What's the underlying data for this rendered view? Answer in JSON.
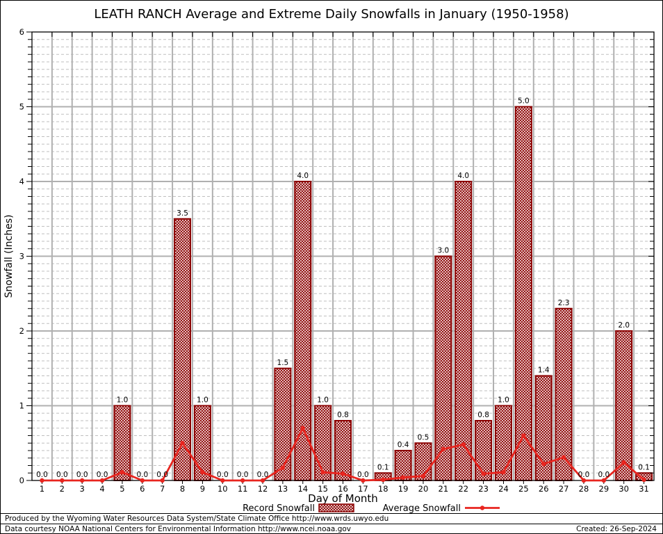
{
  "title": "LEATH RANCH Average and Extreme Daily Snowfalls in January (1950-1958)",
  "footer": {
    "line1": "Produced by the Wyoming Water Resources Data System/State Climate Office http://www.wrds.uwyo.edu",
    "line2": "Data courtesy NOAA National Centers for Environmental Information http://www.ncei.noaa.gov",
    "created": "Created: 26-Sep-2024"
  },
  "chart_data": {
    "type": "bar",
    "title": "LEATH RANCH Average and Extreme Daily Snowfalls in January (1950-1958)",
    "xlabel": "Day of Month",
    "ylabel": "Snowfall (Inches)",
    "ylim": [
      0,
      6
    ],
    "yticks": [
      0,
      1,
      2,
      3,
      4,
      5,
      6
    ],
    "ytick_minor_interval": 0.1,
    "grid": "major-solid-gray, minor-dashed, vertical-day-boundaries",
    "legend_position": "bottom",
    "frame_color": "#000000",
    "major_grid_color": "#b0b0b0",
    "minor_grid_color": "#bfbfbf",
    "categories": [
      1,
      2,
      3,
      4,
      5,
      6,
      7,
      8,
      9,
      10,
      11,
      12,
      13,
      14,
      15,
      16,
      17,
      18,
      19,
      20,
      21,
      22,
      23,
      24,
      25,
      26,
      27,
      28,
      29,
      30,
      31
    ],
    "series": [
      {
        "name": "Record Snowfall",
        "type": "bar",
        "color": "#8b0000",
        "fill_style": "crosshatch",
        "value_labels_shown": true,
        "values": [
          0.0,
          0.0,
          0.0,
          0.0,
          1.0,
          0.0,
          0.0,
          3.5,
          1.0,
          0.0,
          0.0,
          0.0,
          1.5,
          4.0,
          1.0,
          0.8,
          0.0,
          0.1,
          0.4,
          0.5,
          3.0,
          4.0,
          0.8,
          1.0,
          5.0,
          1.4,
          2.3,
          0.0,
          0.0,
          2.0,
          0.1
        ]
      },
      {
        "name": "Average Snowfall",
        "type": "line",
        "color": "#e8251f",
        "marker": "circle",
        "values": [
          0,
          0,
          0,
          0,
          0.11,
          0,
          0,
          0.5,
          0.11,
          0,
          0,
          0,
          0.17,
          0.7,
          0.11,
          0.09,
          0,
          0.01,
          0.04,
          0.06,
          0.42,
          0.48,
          0.09,
          0.11,
          0.6,
          0.22,
          0.31,
          0,
          0,
          0.24,
          0.01
        ]
      }
    ]
  }
}
